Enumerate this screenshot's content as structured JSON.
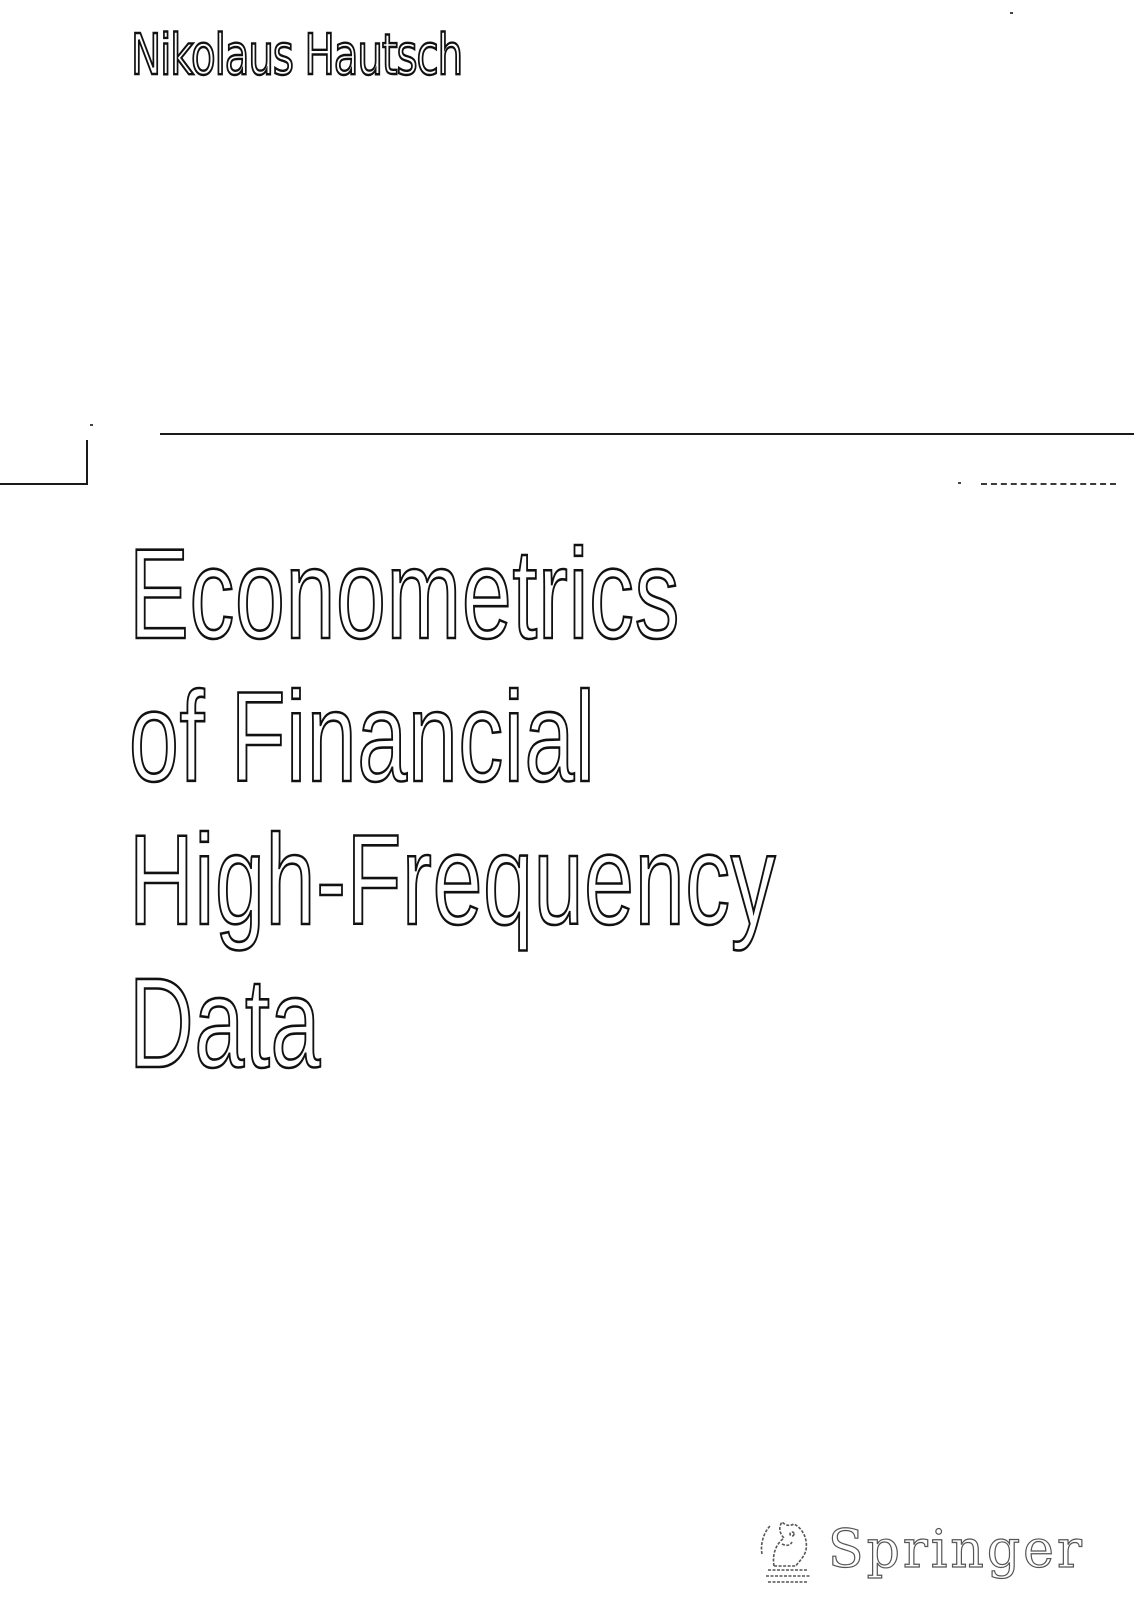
{
  "cover": {
    "author": "Nikolaus Hautsch",
    "title_lines": [
      "Econometrics",
      "of Financial",
      "High-Frequency",
      "Data"
    ],
    "publisher": "Springer",
    "publisher_logo": "springer-chess-knight-logo"
  },
  "colors": {
    "background": "#ffffff",
    "ink": "#111111"
  }
}
